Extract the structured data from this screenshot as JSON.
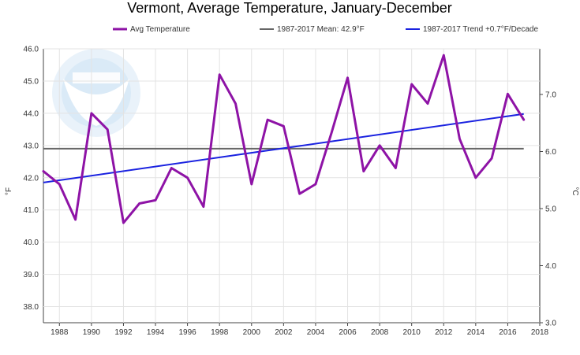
{
  "chart_data": {
    "type": "line",
    "title": "Vermont, Average Temperature, January-December",
    "ylabel": "°F",
    "ylabel_right": "°C",
    "xlim": [
      1987,
      2018
    ],
    "ylim": [
      37.5,
      46.0
    ],
    "ylim_right": [
      3.0,
      7.8
    ],
    "x_ticks": [
      1988,
      1990,
      1992,
      1994,
      1996,
      1998,
      2000,
      2002,
      2004,
      2006,
      2008,
      2010,
      2012,
      2014,
      2016,
      2018
    ],
    "y_ticks": [
      "38.0",
      "39.0",
      "40.0",
      "41.0",
      "42.0",
      "43.0",
      "44.0",
      "45.0",
      "46.0"
    ],
    "y_ticks_right": [
      "3.0",
      "4.0",
      "5.0",
      "6.0",
      "7.0"
    ],
    "grid": true,
    "legend_position": "top",
    "x": [
      1987,
      1988,
      1989,
      1990,
      1991,
      1992,
      1993,
      1994,
      1995,
      1996,
      1997,
      1998,
      1999,
      2000,
      2001,
      2002,
      2003,
      2004,
      2005,
      2006,
      2007,
      2008,
      2009,
      2010,
      2011,
      2012,
      2013,
      2014,
      2015,
      2016,
      2017
    ],
    "series": [
      {
        "name": "Avg Temperature",
        "color": "#8e13a6",
        "values": [
          42.2,
          41.8,
          40.7,
          44.0,
          43.5,
          40.6,
          41.2,
          41.3,
          42.3,
          42.0,
          41.1,
          45.2,
          44.3,
          41.8,
          43.8,
          43.6,
          41.5,
          41.8,
          43.4,
          45.1,
          42.2,
          43.0,
          42.3,
          44.9,
          44.3,
          45.8,
          43.2,
          42.0,
          42.6,
          44.6,
          43.8
        ]
      },
      {
        "name": "1987-2017 Mean: 42.9°F",
        "color": "#666666",
        "value": 42.9
      },
      {
        "name": "1987-2017 Trend +0.7°F/Decade",
        "color": "#1a22e0",
        "start": [
          1987,
          41.85
        ],
        "end": [
          2017,
          43.98
        ]
      }
    ],
    "logo": "noaa-logo"
  }
}
